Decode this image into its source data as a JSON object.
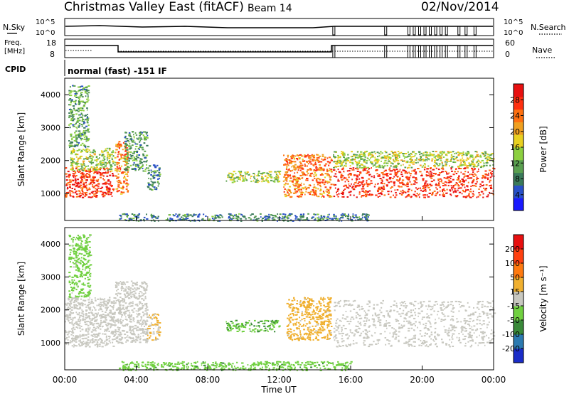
{
  "header": {
    "station": "Christmas Valley East (fitACF)",
    "beam": "Beam 14",
    "date": "02/Nov/2014"
  },
  "status_panels": {
    "nsky_label": "N.Sky",
    "nsearch_label": "N.Search",
    "noise_ticks": [
      "10^5",
      "10^0"
    ],
    "freq_label_1": "Freq.",
    "freq_label_2": "[MHz]",
    "freq_ticks": [
      "18",
      "8"
    ],
    "nave_ticks": [
      "60",
      "0"
    ],
    "nave_label": "Nave",
    "cpid_label": "CPID",
    "cpid_text": "normal (fast) -151 IF"
  },
  "axes": {
    "ylabel": "Slant Range [km]",
    "yticks": [
      "1000",
      "2000",
      "3000",
      "4000"
    ],
    "xticks": [
      "00:00",
      "04:00",
      "08:00",
      "12:00",
      "16:00",
      "20:00",
      "00:00"
    ],
    "xlabel": "Time UT"
  },
  "colorbars": {
    "power": {
      "label": "Power [dB]",
      "ticks": [
        "4",
        "8",
        "12",
        "16",
        "20",
        "24",
        "28"
      ],
      "colors": [
        "#1a1aff",
        "#2850c8",
        "#3a7a5a",
        "#5aa050",
        "#8cd040",
        "#e8d020",
        "#f0a020",
        "#ff7010",
        "#ff3010",
        "#e81010"
      ]
    },
    "velocity": {
      "label": "Velocity [m s⁻¹]",
      "ticks": [
        "200",
        "100",
        "50",
        "15",
        "-15",
        "-50",
        "-100",
        "-200"
      ],
      "colors": [
        "#1a2cc8",
        "#2c7ab0",
        "#3a8a3a",
        "#70d040",
        "#c8c8c0",
        "#f0b030",
        "#ff7a10",
        "#ff4010",
        "#e81010"
      ]
    }
  },
  "chart_data": [
    {
      "type": "heatmap",
      "title": "Power [dB]",
      "xlabel": "Time UT",
      "ylabel": "Slant Range [km]",
      "xlim": [
        0,
        24
      ],
      "ylim": [
        180,
        4500
      ],
      "colorbar_range": [
        0,
        30
      ],
      "regions": [
        {
          "t": [
            0.0,
            2.7
          ],
          "r": [
            900,
            1800
          ],
          "value": 26
        },
        {
          "t": [
            0.3,
            2.8
          ],
          "r": [
            1700,
            2400
          ],
          "value": 14
        },
        {
          "t": [
            0.2,
            1.3
          ],
          "r": [
            2400,
            4300
          ],
          "value": 10
        },
        {
          "t": [
            2.8,
            3.5
          ],
          "r": [
            1000,
            2600
          ],
          "value": 22
        },
        {
          "t": [
            3.3,
            4.6
          ],
          "r": [
            1700,
            2900
          ],
          "value": 10
        },
        {
          "t": [
            4.6,
            5.3
          ],
          "r": [
            1100,
            1900
          ],
          "value": 8
        },
        {
          "t": [
            9.0,
            12.0
          ],
          "r": [
            1350,
            1700
          ],
          "value": 14
        },
        {
          "t": [
            12.2,
            14.9
          ],
          "r": [
            900,
            2200
          ],
          "value": 22
        },
        {
          "t": [
            15.0,
            24.0
          ],
          "r": [
            900,
            1800
          ],
          "value": 26
        },
        {
          "t": [
            15.0,
            24.0
          ],
          "r": [
            1800,
            2300
          ],
          "value": 14
        },
        {
          "t": [
            3.0,
            17.0
          ],
          "r": [
            180,
            400
          ],
          "value": 8
        }
      ]
    },
    {
      "type": "heatmap",
      "title": "Velocity [m s⁻¹]",
      "xlabel": "Time UT",
      "ylabel": "Slant Range [km]",
      "xlim": [
        0,
        24
      ],
      "ylim": [
        180,
        4500
      ],
      "colorbar_range": [
        -200,
        200
      ],
      "regions": [
        {
          "t": [
            0.0,
            2.8
          ],
          "r": [
            900,
            2400
          ],
          "value": 0
        },
        {
          "t": [
            2.8,
            4.6
          ],
          "r": [
            1000,
            2900
          ],
          "value": 0
        },
        {
          "t": [
            0.2,
            1.4
          ],
          "r": [
            2400,
            4300
          ],
          "value": -40
        },
        {
          "t": [
            4.6,
            5.3
          ],
          "r": [
            1100,
            1900
          ],
          "value": 30
        },
        {
          "t": [
            9.0,
            12.0
          ],
          "r": [
            1350,
            1700
          ],
          "value": -60
        },
        {
          "t": [
            12.4,
            14.9
          ],
          "r": [
            1100,
            2400
          ],
          "value": 40
        },
        {
          "t": [
            15.0,
            24.0
          ],
          "r": [
            900,
            2300
          ],
          "value": 0
        },
        {
          "t": [
            3.0,
            16.0
          ],
          "r": [
            180,
            450
          ],
          "value": -50
        }
      ]
    }
  ]
}
